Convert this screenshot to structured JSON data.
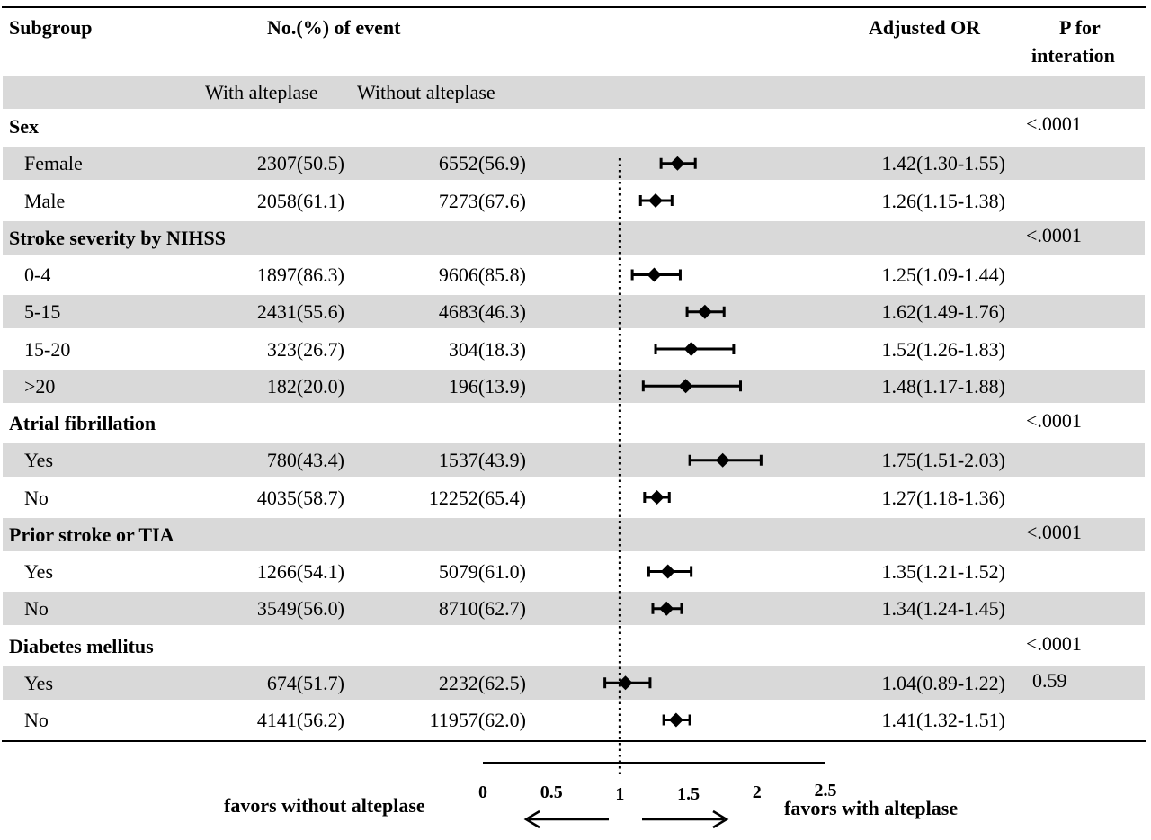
{
  "header": {
    "subgroup": "Subgroup",
    "events": "No.(%) of event",
    "adjusted_or": "Adjusted OR",
    "p_line1": "P for",
    "p_line2": "interation",
    "with": "With alteplase",
    "without": "Without alteplase"
  },
  "rows": [
    {
      "type": "group",
      "label": "Sex",
      "p": "<.0001",
      "bg": false
    },
    {
      "type": "sub",
      "label": "Female",
      "with": "2307(50.5)",
      "without": "6552(56.9)",
      "or_text": "1.42(1.30-1.55)",
      "or": 1.42,
      "lo": 1.3,
      "hi": 1.55,
      "bg": true
    },
    {
      "type": "sub",
      "label": "Male",
      "with": "2058(61.1)",
      "without": "7273(67.6)",
      "or_text": "1.26(1.15-1.38)",
      "or": 1.26,
      "lo": 1.15,
      "hi": 1.38,
      "bg": false
    },
    {
      "type": "group",
      "label": "Stroke severity by NIHSS",
      "p": "<.0001",
      "bg": true
    },
    {
      "type": "sub",
      "label": "0-4",
      "with": "1897(86.3)",
      "without": "9606(85.8)",
      "or_text": "1.25(1.09-1.44)",
      "or": 1.25,
      "lo": 1.09,
      "hi": 1.44,
      "bg": false
    },
    {
      "type": "sub",
      "label": "5-15",
      "with": "2431(55.6)",
      "without": "4683(46.3)",
      "or_text": "1.62(1.49-1.76)",
      "or": 1.62,
      "lo": 1.49,
      "hi": 1.76,
      "bg": true
    },
    {
      "type": "sub",
      "label": "15-20",
      "with": "323(26.7)",
      "without": "304(18.3)",
      "or_text": "1.52(1.26-1.83)",
      "or": 1.52,
      "lo": 1.26,
      "hi": 1.83,
      "bg": false
    },
    {
      "type": "sub",
      "label": ">20",
      "with": "182(20.0)",
      "without": "196(13.9)",
      "or_text": "1.48(1.17-1.88)",
      "or": 1.48,
      "lo": 1.17,
      "hi": 1.88,
      "bg": true
    },
    {
      "type": "group",
      "label": "Atrial fibrillation",
      "p": "<.0001",
      "bg": false
    },
    {
      "type": "sub",
      "label": "Yes",
      "with": "780(43.4)",
      "without": "1537(43.9)",
      "or_text": "1.75(1.51-2.03)",
      "or": 1.75,
      "lo": 1.51,
      "hi": 2.03,
      "bg": true
    },
    {
      "type": "sub",
      "label": "No",
      "with": "4035(58.7)",
      "without": "12252(65.4)",
      "or_text": "1.27(1.18-1.36)",
      "or": 1.27,
      "lo": 1.18,
      "hi": 1.36,
      "bg": false
    },
    {
      "type": "group",
      "label": "Prior stroke or TIA",
      "p": "<.0001",
      "bg": true
    },
    {
      "type": "sub",
      "label": "Yes",
      "with": "1266(54.1)",
      "without": "5079(61.0)",
      "or_text": "1.35(1.21-1.52)",
      "or": 1.35,
      "lo": 1.21,
      "hi": 1.52,
      "bg": false
    },
    {
      "type": "sub",
      "label": "No",
      "with": "3549(56.0)",
      "without": "8710(62.7)",
      "or_text": "1.34(1.24-1.45)",
      "or": 1.34,
      "lo": 1.24,
      "hi": 1.45,
      "bg": true
    },
    {
      "type": "group",
      "label": "Diabetes  mellitus",
      "p": "<.0001",
      "bg": false
    },
    {
      "type": "sub",
      "label": "Yes",
      "with": "674(51.7)",
      "without": "2232(62.5)",
      "or_text": "1.04(0.89-1.22)",
      "or": 1.04,
      "lo": 0.89,
      "hi": 1.22,
      "p": "0.59",
      "bg": true
    },
    {
      "type": "sub",
      "label": "No",
      "with": "4141(56.2)",
      "without": "11957(62.0)",
      "or_text": "1.41(1.32-1.51)",
      "or": 1.41,
      "lo": 1.32,
      "hi": 1.51,
      "bg": false
    }
  ],
  "chart_data": {
    "type": "forest",
    "reference_line": 1,
    "xlim": [
      0,
      2.5
    ],
    "ticks": [
      "0",
      "0.5",
      "1",
      "1.5",
      "2",
      "2.5"
    ],
    "left_label": "favors without alteplase",
    "right_label": "favors  with alteplase",
    "categories": [
      "Female",
      "Male",
      "0-4",
      "5-15",
      "15-20",
      ">20",
      "Yes",
      "No",
      "Yes",
      "No",
      "Yes",
      "No"
    ],
    "series": [
      {
        "values": [
          1.42,
          1.26,
          1.25,
          1.62,
          1.52,
          1.48,
          1.75,
          1.27,
          1.35,
          1.34,
          1.04,
          1.41
        ],
        "lower": [
          1.3,
          1.15,
          1.09,
          1.49,
          1.26,
          1.17,
          1.51,
          1.18,
          1.21,
          1.24,
          0.89,
          1.32
        ],
        "upper": [
          1.55,
          1.38,
          1.44,
          1.76,
          1.83,
          1.88,
          2.03,
          1.36,
          1.52,
          1.45,
          1.22,
          1.51
        ]
      }
    ]
  }
}
